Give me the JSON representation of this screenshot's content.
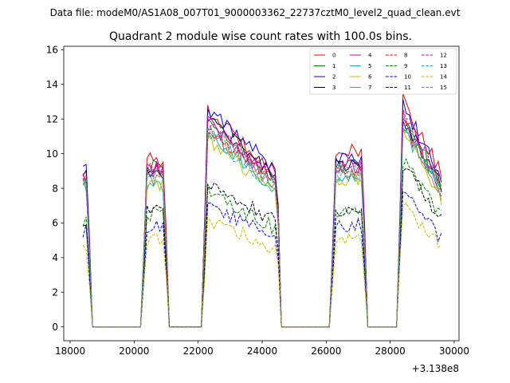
{
  "chart_data": {
    "type": "line",
    "suptitle": "Data file: modeM0/AS1A08_007T01_9000003362_22737cztM0_level2_quad_clean.evt",
    "title": "Quadrant 2 module wise count rates with 100.0s bins.",
    "xlabel": "",
    "ylabel": "",
    "offset_text": "+3.138e8",
    "xlim": [
      17800,
      30150
    ],
    "ylim": [
      -0.8,
      16.2
    ],
    "xticks": [
      18000,
      20000,
      22000,
      24000,
      26000,
      28000,
      30000
    ],
    "yticks": [
      0,
      2,
      4,
      6,
      8,
      10,
      12,
      14,
      16
    ],
    "legend_position": "top-right",
    "segments": [
      {
        "start": 18350,
        "end": 18650
      },
      {
        "start": 20250,
        "end": 21050
      },
      {
        "start": 22150,
        "end": 24550
      },
      {
        "start": 26150,
        "end": 27250
      },
      {
        "start": 28250,
        "end": 29650
      }
    ],
    "gaps": [
      {
        "start": 18650,
        "end": 20250
      },
      {
        "start": 21050,
        "end": 22150
      },
      {
        "start": 24550,
        "end": 26150
      },
      {
        "start": 27250,
        "end": 28250
      }
    ],
    "series": [
      {
        "name": "0",
        "color": "#ff0000",
        "dash": "solid",
        "levels": [
          8.8,
          9.6,
          12.6,
          10.1,
          13.5
        ]
      },
      {
        "name": "1",
        "color": "#008000",
        "dash": "solid",
        "levels": [
          8.5,
          9.3,
          12.0,
          9.2,
          12.5
        ]
      },
      {
        "name": "2",
        "color": "#0000ff",
        "dash": "solid",
        "levels": [
          9.2,
          9.2,
          12.8,
          9.6,
          13.2
        ]
      },
      {
        "name": "3",
        "color": "#000000",
        "dash": "solid",
        "levels": [
          8.6,
          8.8,
          12.3,
          9.3,
          12.4
        ]
      },
      {
        "name": "4",
        "color": "#bf00bf",
        "dash": "solid",
        "levels": [
          8.6,
          9.3,
          11.9,
          9.3,
          12.1
        ]
      },
      {
        "name": "5",
        "color": "#20b2aa",
        "dash": "solid",
        "levels": [
          8.2,
          8.2,
          11.2,
          8.5,
          11.8
        ]
      },
      {
        "name": "6",
        "color": "#bfbf00",
        "dash": "solid",
        "levels": [
          8.0,
          8.2,
          11.0,
          8.6,
          11.5
        ]
      },
      {
        "name": "7",
        "color": "#808080",
        "dash": "solid",
        "levels": [
          8.2,
          8.5,
          11.6,
          8.9,
          12.0
        ]
      },
      {
        "name": "8",
        "color": "#ff0000",
        "dash": "dashed",
        "levels": [
          8.4,
          9.0,
          11.5,
          8.8,
          12.6
        ]
      },
      {
        "name": "9",
        "color": "#008000",
        "dash": "dashed",
        "levels": [
          6.2,
          6.5,
          8.0,
          6.6,
          9.8
        ]
      },
      {
        "name": "10",
        "color": "#0000ff",
        "dash": "dashed",
        "levels": [
          5.5,
          5.8,
          7.2,
          5.9,
          7.9
        ]
      },
      {
        "name": "11",
        "color": "#000000",
        "dash": "dashed",
        "levels": [
          6.1,
          6.7,
          8.5,
          6.7,
          9.6
        ]
      },
      {
        "name": "12",
        "color": "#bf00bf",
        "dash": "dashed",
        "levels": [
          8.7,
          9.1,
          11.9,
          9.2,
          12.8
        ]
      },
      {
        "name": "13",
        "color": "#20b2aa",
        "dash": "dashed",
        "levels": [
          8.3,
          8.7,
          11.3,
          8.8,
          12.2
        ]
      },
      {
        "name": "14",
        "color": "#bfbf00",
        "dash": "dashed",
        "levels": [
          4.8,
          5.0,
          6.3,
          5.1,
          7.1
        ]
      },
      {
        "name": "15",
        "color": "#808080",
        "dash": "dashed",
        "levels": [
          8.3,
          8.8,
          11.5,
          9.0,
          12.3
        ]
      }
    ]
  }
}
